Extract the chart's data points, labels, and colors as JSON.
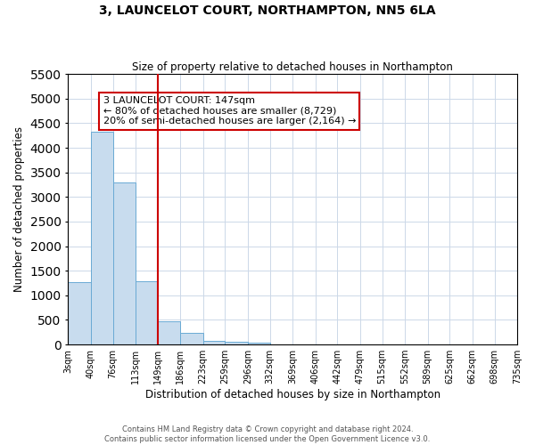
{
  "title": "3, LAUNCELOT COURT, NORTHAMPTON, NN5 6LA",
  "subtitle": "Size of property relative to detached houses in Northampton",
  "xlabel": "Distribution of detached houses by size in Northampton",
  "ylabel": "Number of detached properties",
  "bin_edges": [
    3,
    40,
    76,
    113,
    149,
    186,
    223,
    259,
    296,
    332,
    369,
    406,
    442,
    479,
    515,
    552,
    589,
    625,
    662,
    698,
    735
  ],
  "bin_counts": [
    1270,
    4330,
    3300,
    1290,
    480,
    230,
    80,
    55,
    40,
    0,
    0,
    0,
    0,
    0,
    0,
    0,
    0,
    0,
    0,
    0
  ],
  "bar_color": "#c8dcee",
  "bar_edge_color": "#6aaad4",
  "vline_x": 149,
  "vline_color": "#cc0000",
  "ylim": [
    0,
    5500
  ],
  "yticks": [
    0,
    500,
    1000,
    1500,
    2000,
    2500,
    3000,
    3500,
    4000,
    4500,
    5000,
    5500
  ],
  "annotation_title": "3 LAUNCELOT COURT: 147sqm",
  "annotation_line1": "← 80% of detached houses are smaller (8,729)",
  "annotation_line2": "20% of semi-detached houses are larger (2,164) →",
  "annotation_box_color": "#ffffff",
  "annotation_box_edge": "#cc0000",
  "footer_line1": "Contains HM Land Registry data © Crown copyright and database right 2024.",
  "footer_line2": "Contains public sector information licensed under the Open Government Licence v3.0.",
  "tick_labels": [
    "3sqm",
    "40sqm",
    "76sqm",
    "113sqm",
    "149sqm",
    "186sqm",
    "223sqm",
    "259sqm",
    "296sqm",
    "332sqm",
    "369sqm",
    "406sqm",
    "442sqm",
    "479sqm",
    "515sqm",
    "552sqm",
    "589sqm",
    "625sqm",
    "662sqm",
    "698sqm",
    "735sqm"
  ],
  "background_color": "#ffffff",
  "grid_color": "#ccd8e8"
}
